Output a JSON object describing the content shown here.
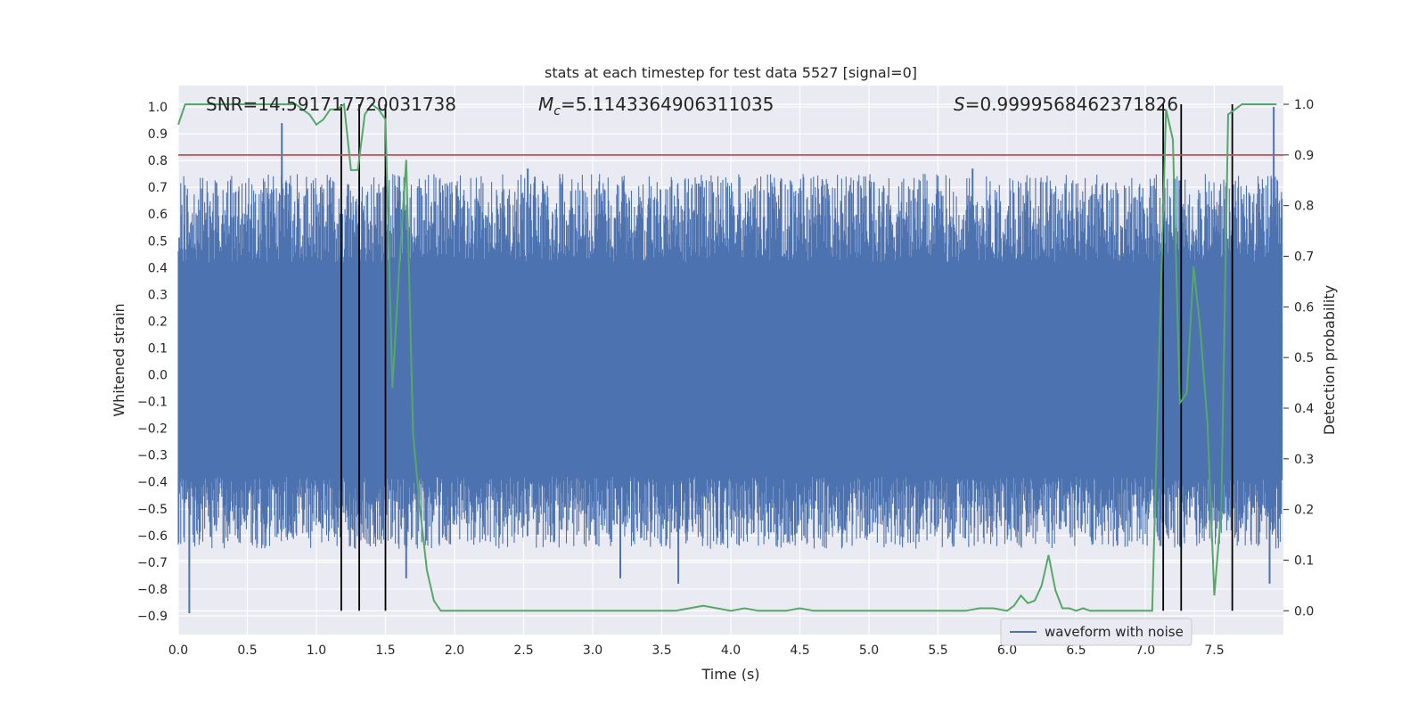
{
  "chart_data": {
    "type": "line",
    "title": "stats at each timestep for test data 5527 [signal=0]",
    "xlabel": "Time (s)",
    "ylabel": "Whitened strain",
    "y2label": "Detection probability",
    "xlim": [
      0.0,
      8.0
    ],
    "ylim": [
      -0.97,
      1.08
    ],
    "y2lim": [
      -0.047,
      1.037
    ],
    "xticks": [
      0.0,
      0.5,
      1.0,
      1.5,
      2.0,
      2.5,
      3.0,
      3.5,
      4.0,
      4.5,
      5.0,
      5.5,
      6.0,
      6.5,
      7.0,
      7.5
    ],
    "yticks": [
      1.0,
      0.9,
      0.8,
      0.7,
      0.6,
      0.5,
      0.4,
      0.3,
      0.2,
      0.1,
      0.0,
      -0.1,
      -0.2,
      -0.3,
      -0.4,
      -0.5,
      -0.6,
      -0.7,
      -0.8,
      -0.9
    ],
    "y2ticks": [
      1.0,
      0.9,
      0.8,
      0.7,
      0.6,
      0.5,
      0.4,
      0.3,
      0.2,
      0.1,
      0.0
    ],
    "annotations": {
      "snr": "SNR=14.591717720031738",
      "mc_symbol": "M",
      "mc_sub": "c",
      "mc_value": "=5.1143364906311035",
      "s_symbol": "S",
      "s_value": "=0.9999568462371826"
    },
    "legend": {
      "entries": [
        "waveform with noise"
      ],
      "placement": "lower-right"
    },
    "colors": {
      "waveform": "#4c72b0",
      "probability": "#55a868",
      "threshold": "#c44e52",
      "event": "#000000",
      "plot_bg": "#eaeaf2",
      "grid": "#ffffff"
    },
    "threshold_y2": 0.9,
    "event_lines_x": [
      1.18,
      1.31,
      1.5,
      7.13,
      7.26,
      7.63
    ],
    "waveform": {
      "envelope_low": -0.38,
      "envelope_high": 0.42,
      "spikes": [
        {
          "x": 0.75,
          "y": 0.94
        },
        {
          "x": 0.08,
          "y": -0.89
        },
        {
          "x": 1.65,
          "y": -0.76
        },
        {
          "x": 2.53,
          "y": 0.77
        },
        {
          "x": 3.2,
          "y": -0.76
        },
        {
          "x": 3.62,
          "y": -0.78
        },
        {
          "x": 5.75,
          "y": 0.77
        },
        {
          "x": 7.93,
          "y": 1.0
        },
        {
          "x": 7.9,
          "y": -0.78
        }
      ]
    },
    "series": [
      {
        "name": "detection probability",
        "x": [
          0.0,
          0.05,
          0.1,
          0.15,
          0.2,
          0.3,
          0.4,
          0.5,
          0.6,
          0.7,
          0.8,
          0.85,
          0.9,
          0.95,
          1.0,
          1.05,
          1.1,
          1.15,
          1.2,
          1.25,
          1.3,
          1.35,
          1.4,
          1.45,
          1.5,
          1.55,
          1.6,
          1.65,
          1.7,
          1.75,
          1.8,
          1.85,
          1.9,
          1.95,
          2.0,
          2.1,
          2.2,
          2.4,
          2.6,
          2.8,
          3.0,
          3.2,
          3.4,
          3.6,
          3.7,
          3.8,
          3.9,
          4.0,
          4.1,
          4.2,
          4.3,
          4.4,
          4.5,
          4.6,
          4.8,
          5.0,
          5.2,
          5.4,
          5.6,
          5.7,
          5.8,
          5.9,
          6.0,
          6.05,
          6.1,
          6.15,
          6.2,
          6.25,
          6.3,
          6.35,
          6.4,
          6.45,
          6.5,
          6.55,
          6.6,
          6.7,
          6.8,
          6.9,
          7.0,
          7.05,
          7.1,
          7.15,
          7.2,
          7.25,
          7.3,
          7.35,
          7.4,
          7.45,
          7.5,
          7.55,
          7.6,
          7.65,
          7.7,
          7.75,
          7.8,
          7.85,
          7.9,
          7.95
        ],
        "values": [
          0.96,
          1.0,
          1.0,
          1.0,
          1.0,
          1.0,
          1.0,
          1.0,
          1.0,
          1.0,
          1.0,
          1.0,
          0.99,
          0.98,
          0.96,
          0.97,
          0.99,
          0.99,
          1.0,
          0.87,
          0.87,
          0.98,
          1.0,
          0.99,
          0.97,
          0.44,
          0.68,
          0.89,
          0.35,
          0.2,
          0.08,
          0.02,
          0.0,
          0.0,
          0.0,
          0.0,
          0.0,
          0.0,
          0.0,
          0.0,
          0.0,
          0.0,
          0.0,
          0.0,
          0.005,
          0.01,
          0.005,
          0.0,
          0.005,
          0.0,
          0.0,
          0.0,
          0.005,
          0.0,
          0.0,
          0.0,
          0.0,
          0.0,
          0.0,
          0.0,
          0.005,
          0.005,
          0.0,
          0.01,
          0.03,
          0.015,
          0.02,
          0.05,
          0.11,
          0.04,
          0.005,
          0.005,
          0.0,
          0.005,
          0.0,
          0.0,
          0.0,
          0.0,
          0.0,
          0.0,
          0.5,
          0.99,
          0.93,
          0.41,
          0.43,
          0.68,
          0.55,
          0.37,
          0.03,
          0.2,
          0.98,
          0.99,
          1.0,
          1.0,
          1.0,
          1.0,
          1.0,
          1.0
        ]
      }
    ]
  }
}
